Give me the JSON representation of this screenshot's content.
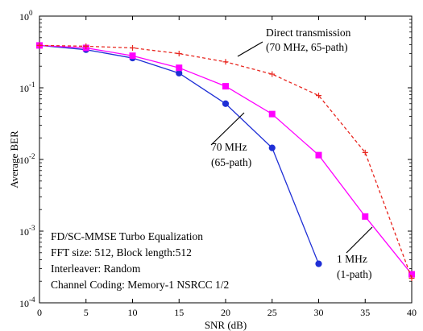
{
  "chart_data": {
    "type": "line",
    "xlabel": "SNR (dB)",
    "ylabel": "Average BER",
    "xlim": [
      0,
      40
    ],
    "ylim": [
      0.0001,
      1
    ],
    "yscale": "log",
    "x_ticks": [
      0,
      5,
      10,
      15,
      20,
      25,
      30,
      35,
      40
    ],
    "x_tick_labels": [
      "0",
      "5",
      "10",
      "15",
      "20",
      "25",
      "30",
      "35",
      "40"
    ],
    "y_ticks": [
      0.0001,
      0.001,
      0.01,
      0.1,
      1
    ],
    "y_tick_labels": [
      {
        "base": "10",
        "exp": "-4"
      },
      {
        "base": "10",
        "exp": "-3"
      },
      {
        "base": "10",
        "exp": "-2"
      },
      {
        "base": "10",
        "exp": "-1"
      },
      {
        "base": "10",
        "exp": "0"
      }
    ],
    "grid": false,
    "series": [
      {
        "color": "#1f2fd6",
        "line_style": "solid",
        "marker": "circle",
        "x": [
          0,
          5,
          10,
          15,
          20,
          25,
          30
        ],
        "y": [
          0.39,
          0.34,
          0.26,
          0.16,
          0.06,
          0.0145,
          0.00035
        ]
      },
      {
        "color": "#ff00ff",
        "line_style": "solid",
        "marker": "square",
        "x": [
          0,
          5,
          10,
          15,
          20,
          25,
          30,
          35,
          40
        ],
        "y": [
          0.39,
          0.36,
          0.28,
          0.19,
          0.105,
          0.043,
          0.0115,
          0.0016,
          0.00025
        ]
      },
      {
        "color": "#e8261f",
        "line_style": "dashed",
        "marker": "plus",
        "x": [
          0,
          5,
          10,
          15,
          20,
          25,
          30,
          35,
          40
        ],
        "y": [
          0.39,
          0.38,
          0.36,
          0.3,
          0.23,
          0.155,
          0.078,
          0.0125,
          0.00022
        ]
      }
    ],
    "annotations": [
      {
        "lines": [
          "Direct transmission",
          "(70 MHz, 65-path)"
        ]
      },
      {
        "lines": [
          "70 MHz",
          "(65-path)"
        ]
      },
      {
        "lines": [
          "1 MHz",
          "(1-path)"
        ]
      }
    ],
    "info_box": [
      "FD/SC-MMSE Turbo Equalization",
      "FFT size: 512, Block length:512",
      "Interleaver: Random",
      "Channel Coding: Memory-1 NSRCC 1/2"
    ]
  }
}
